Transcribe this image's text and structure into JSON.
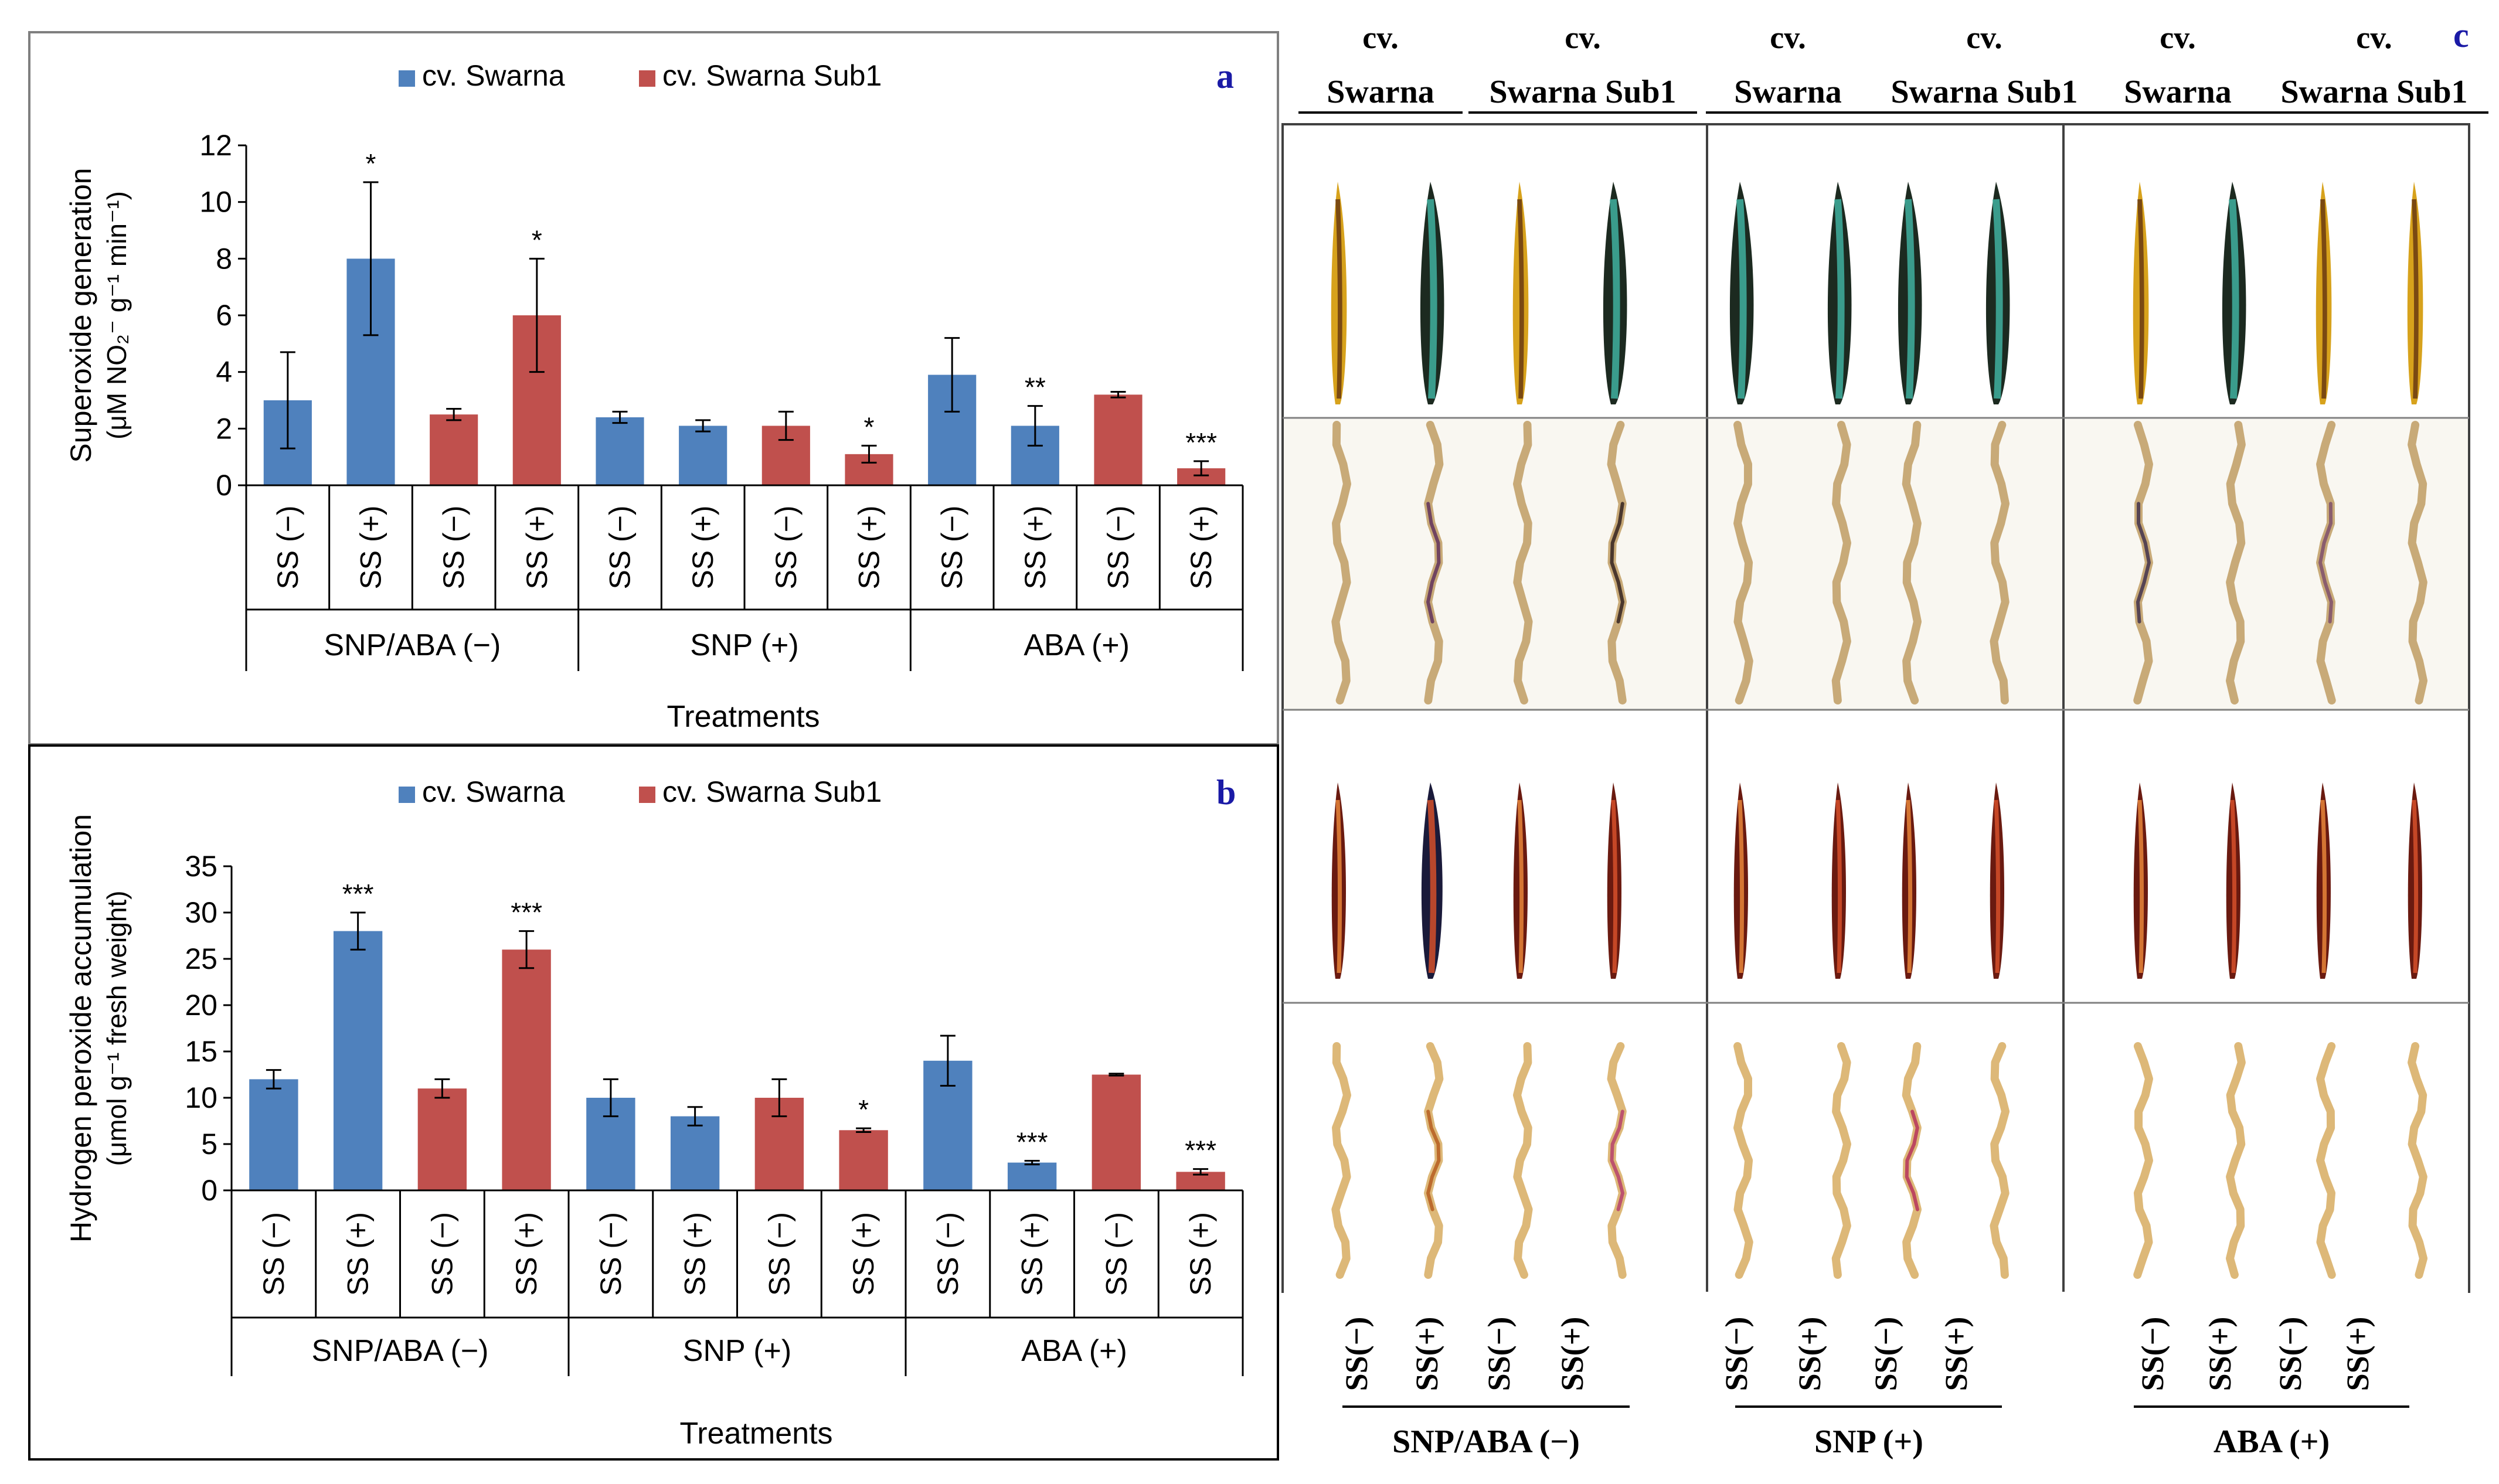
{
  "colors": {
    "swarna": "#4f81bd",
    "sub1": "#c0504d",
    "panel_label": "#1a1aa6",
    "axis": "#000000"
  },
  "chart_data": [
    {
      "type": "bar",
      "panel": "a",
      "legend": [
        "cv. Swarna",
        "cv. Swarna Sub1"
      ],
      "legend_position": "top-center",
      "ylabel_line1": "Superoxide generation",
      "ylabel_line2": "(μM NO₂⁻ g⁻¹ min⁻¹)",
      "xlabel": "Treatments",
      "ylim": [
        0,
        12
      ],
      "yticks": [
        "0",
        "2",
        "4",
        "6",
        "8",
        "10",
        "12"
      ],
      "categories": [
        "SS (−)",
        "SS (+)",
        "SS (−)",
        "SS (+)",
        "SS (−)",
        "SS (+)",
        "SS (−)",
        "SS (+)",
        "SS (−)",
        "SS (+)",
        "SS (−)",
        "SS (+)"
      ],
      "cultivar": [
        "swarna",
        "swarna",
        "sub1",
        "sub1",
        "swarna",
        "swarna",
        "sub1",
        "sub1",
        "swarna",
        "swarna",
        "sub1",
        "sub1"
      ],
      "values": [
        3.0,
        8.0,
        2.5,
        6.0,
        2.4,
        2.1,
        2.1,
        1.1,
        3.9,
        2.1,
        3.2,
        0.6
      ],
      "errors": [
        1.7,
        2.7,
        0.2,
        2.0,
        0.2,
        0.2,
        0.5,
        0.3,
        1.3,
        0.7,
        0.1,
        0.25
      ],
      "significance": [
        "",
        "*",
        "",
        "*",
        "",
        "",
        "",
        "*",
        "",
        "**",
        "",
        "***"
      ],
      "groups": [
        "SNP/ABA (−)",
        "SNP (+)",
        "ABA (+)"
      ]
    },
    {
      "type": "bar",
      "panel": "b",
      "legend": [
        "cv. Swarna",
        "cv. Swarna Sub1"
      ],
      "legend_position": "top-center",
      "ylabel_line1": "Hydrogen peroxide accumulation",
      "ylabel_line2": "(μmol g⁻¹ fresh weight)",
      "xlabel": "Treatments",
      "ylim": [
        0,
        35
      ],
      "yticks": [
        "0",
        "5",
        "10",
        "15",
        "20",
        "25",
        "30",
        "35"
      ],
      "categories": [
        "SS (−)",
        "SS (+)",
        "SS (−)",
        "SS (+)",
        "SS (−)",
        "SS (+)",
        "SS (−)",
        "SS (+)",
        "SS (−)",
        "SS (+)",
        "SS (−)",
        "SS (+)"
      ],
      "cultivar": [
        "swarna",
        "swarna",
        "sub1",
        "sub1",
        "swarna",
        "swarna",
        "sub1",
        "sub1",
        "swarna",
        "swarna",
        "sub1",
        "sub1"
      ],
      "values": [
        12,
        28,
        11,
        26,
        10,
        8,
        10,
        6.5,
        14,
        3,
        12.5,
        2
      ],
      "errors": [
        1.0,
        2.0,
        1.0,
        2.0,
        2.0,
        1.0,
        2.0,
        0.2,
        2.7,
        0.2,
        0.1,
        0.3
      ],
      "significance": [
        "",
        "***",
        "",
        "***",
        "",
        "",
        "",
        "*",
        "",
        "***",
        "",
        "***"
      ],
      "groups": [
        "SNP/ABA (−)",
        "SNP (+)",
        "ABA (+)"
      ]
    }
  ],
  "panel_c": {
    "label": "c",
    "cv_prefix": "cv.",
    "cultivars": [
      "Swarna",
      "Swarna Sub1",
      "Swarna",
      "Swarna Sub1",
      "Swarna",
      "Swarna Sub1"
    ],
    "groups": [
      "SNP/ABA (−)",
      "SNP (+)",
      "ABA (+)"
    ],
    "column_labels": [
      "SS(−)",
      "SS(+)",
      "SS(−)",
      "SS(+)",
      "SS(−)",
      "SS(+)",
      "SS(−)",
      "SS(+)",
      "SS(−)",
      "SS(+)",
      "SS(−)",
      "SS(+)"
    ]
  }
}
